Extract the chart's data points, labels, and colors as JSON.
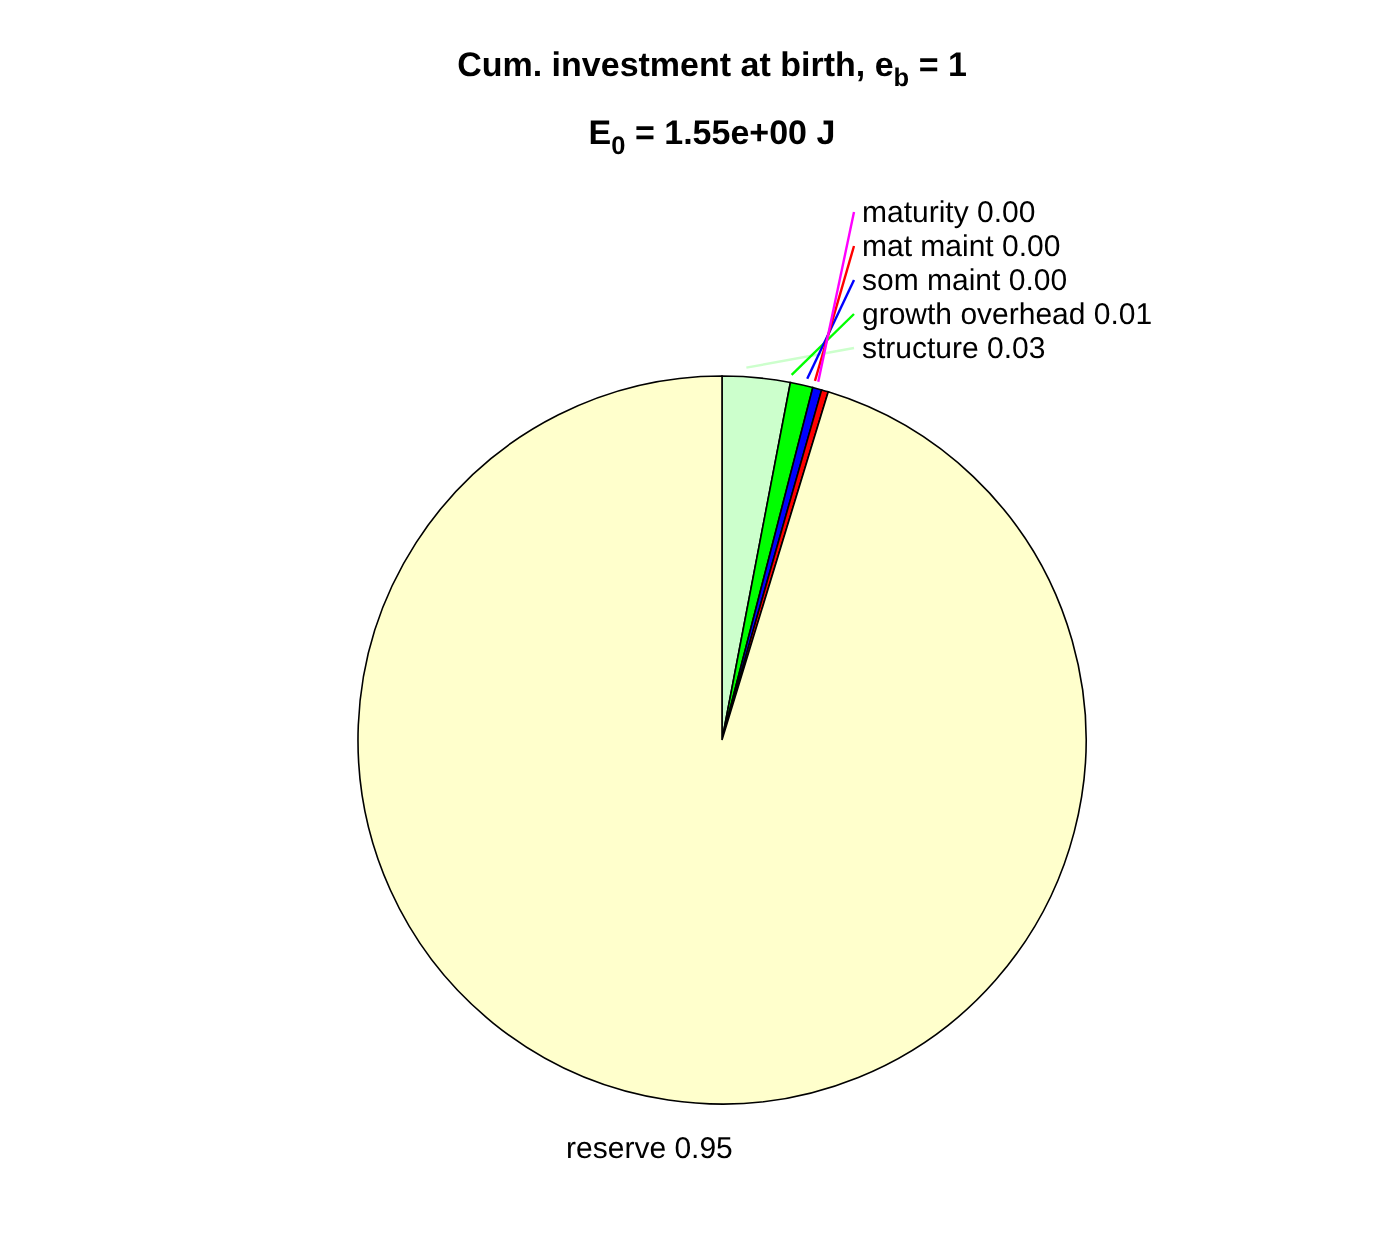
{
  "chart_data": {
    "type": "pie",
    "title": "Cum. investment at birth, e$_{b}$ = 1",
    "subtitle": "E$_{0}$ = 1.55e+00 J",
    "categories": [
      "structure",
      "growth overhead",
      "som maint",
      "mat maint",
      "maturity",
      "reserve"
    ],
    "values": [
      0.03,
      0.01,
      0.004,
      0.003,
      null,
      0.95
    ],
    "value_labels": [
      "0.03",
      "0.01",
      "0.00",
      "0.00",
      "0.00",
      "0.95"
    ],
    "colors": [
      "#ccffcc",
      "#00ff00",
      "#0000ff",
      "#ff0000",
      "#ff00ff",
      "#ffffcc"
    ],
    "legend": false
  }
}
